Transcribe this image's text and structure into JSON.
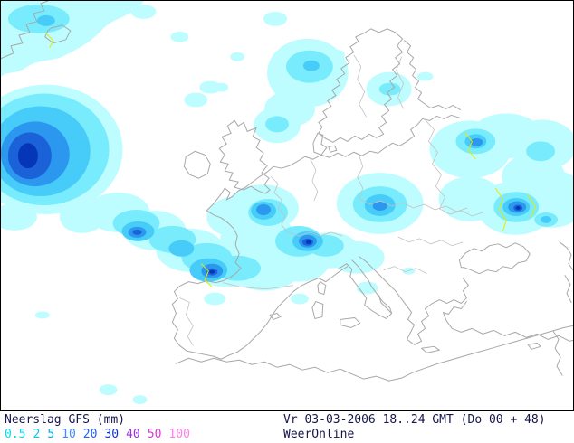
{
  "footer": {
    "title": "Neerslag GFS (mm)",
    "timestamp": "Vr 03-03-2006 18..24 GMT (Do 00 + 48)",
    "source": "WeerOnline",
    "legend": [
      {
        "value": "0.5",
        "color": "#00dde8"
      },
      {
        "value": "2",
        "color": "#00c8e8"
      },
      {
        "value": "5",
        "color": "#00aadd"
      },
      {
        "value": "10",
        "color": "#3d8cff"
      },
      {
        "value": "20",
        "color": "#2060ff"
      },
      {
        "value": "30",
        "color": "#0f32cc"
      },
      {
        "value": "40",
        "color": "#9933e0"
      },
      {
        "value": "50",
        "color": "#d43cd4"
      },
      {
        "value": "100",
        "color": "#ff80e6"
      }
    ]
  },
  "map_data": {
    "type": "precipitation-map",
    "variable": "Neerslag (mm)",
    "model": "GFS",
    "valid_time": "Vr 03-03-2006 18..24 GMT",
    "forecast_run": "Do 00 + 48",
    "region": "Europe / Northeast Atlantic",
    "levels_mm": [
      0.5,
      2,
      5,
      10,
      20,
      30,
      40,
      50,
      100
    ],
    "level_fill_colors": [
      "#bdfdff",
      "#78ecfc",
      "#47ccf9",
      "#2b97ee",
      "#1b62d8",
      "#0636b8"
    ],
    "coastline_color": "#a8a8a8",
    "border_color": "#c2c2c2",
    "river_color": "#e8e800",
    "features": [
      {
        "area": "Northeast Atlantic at left map edge",
        "max_mm": 30
      },
      {
        "area": "Frontal band Atlantic - Bay of Biscay - NW Spain",
        "max_mm": 30
      },
      {
        "area": "English Channel / Brittany",
        "max_mm": 20
      },
      {
        "area": "Alps / Switzerland / N Italy",
        "max_mm": 30
      },
      {
        "area": "Central Europe",
        "max_mm": 10
      },
      {
        "area": "European Russia (right of map)",
        "max_mm": 30
      },
      {
        "area": "Norwegian coast / North Sea",
        "max_mm": 5
      },
      {
        "area": "Scattered light precipitation over Mediterranean, Iberia, N Africa",
        "max_mm": 0.5
      }
    ]
  }
}
